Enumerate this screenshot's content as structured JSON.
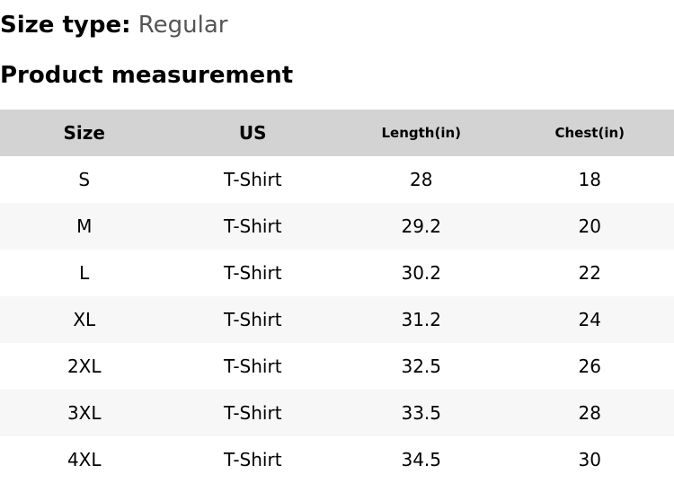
{
  "size_type": {
    "label": "Size type:",
    "value": "Regular"
  },
  "section_title": "Product measurement",
  "table": {
    "headers": [
      "Size",
      "US",
      "Length(in)",
      "Chest(in)"
    ],
    "rows": [
      [
        "S",
        "T-Shirt",
        "28",
        "18"
      ],
      [
        "M",
        "T-Shirt",
        "29.2",
        "20"
      ],
      [
        "L",
        "T-Shirt",
        "30.2",
        "22"
      ],
      [
        "XL",
        "T-Shirt",
        "31.2",
        "24"
      ],
      [
        "2XL",
        "T-Shirt",
        "32.5",
        "26"
      ],
      [
        "3XL",
        "T-Shirt",
        "33.5",
        "28"
      ],
      [
        "4XL",
        "T-Shirt",
        "34.5",
        "30"
      ]
    ]
  },
  "colors": {
    "header_bg": "#d3d3d3",
    "alt_row_bg": "#f7f7f7",
    "value_text": "#555555"
  }
}
